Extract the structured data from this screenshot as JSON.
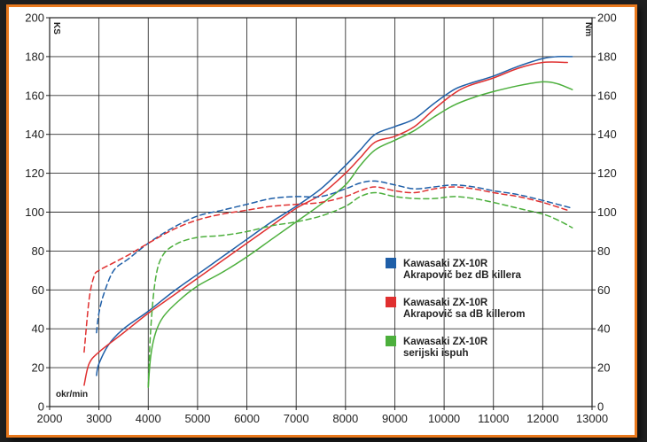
{
  "chart_data": {
    "type": "line",
    "title": "",
    "xlabel": "okr/min",
    "ylabel_left": "KS",
    "ylabel_right": "Nm",
    "xlim": [
      2000,
      13000
    ],
    "ylim": [
      0,
      200
    ],
    "x_ticks": [
      2000,
      3000,
      4000,
      5000,
      6000,
      7000,
      8000,
      9000,
      10000,
      11000,
      12000,
      13000
    ],
    "y_ticks": [
      0,
      20,
      40,
      60,
      80,
      100,
      120,
      140,
      160,
      180,
      200
    ],
    "grid": true,
    "legend_placement": "center-right",
    "legend": [
      {
        "lines": [
          "Kawasaki ZX-10R",
          "Akrapovič bez dB killera"
        ],
        "color": "#1f5fa8"
      },
      {
        "lines": [
          "Kawasaki ZX-10R",
          "Akrapovič sa dB killerom"
        ],
        "color": "#e03030"
      },
      {
        "lines": [
          "Kawasaki ZX-10R",
          "serijski ispuh"
        ],
        "color": "#4caf3c"
      }
    ],
    "series": [
      {
        "color": "#1f5fa8",
        "style": "solid",
        "x": [
          2950,
          3000,
          3200,
          3500,
          4000,
          4500,
          5000,
          5500,
          6000,
          6500,
          7000,
          7500,
          8000,
          8300,
          8600,
          9000,
          9400,
          9800,
          10200,
          10500,
          11000,
          11500,
          12000,
          12300,
          12600
        ],
        "y": [
          16,
          22,
          32,
          40,
          49,
          59,
          68,
          77,
          86,
          95,
          103,
          112,
          124,
          132,
          140,
          144,
          148,
          156,
          163,
          166,
          170,
          175,
          179,
          180,
          180
        ]
      },
      {
        "color": "#e03030",
        "style": "solid",
        "x": [
          2700,
          2800,
          3000,
          3500,
          4000,
          4500,
          5000,
          5500,
          6000,
          6500,
          7000,
          7500,
          8000,
          8300,
          8600,
          9000,
          9400,
          9800,
          10200,
          10500,
          11000,
          11500,
          12000,
          12500
        ],
        "y": [
          11,
          22,
          28,
          38,
          48,
          57,
          66,
          75,
          84,
          93,
          102,
          109,
          120,
          128,
          136,
          139,
          144,
          153,
          161,
          165,
          169,
          174,
          177,
          177
        ]
      },
      {
        "color": "#4caf3c",
        "style": "solid",
        "x": [
          4000,
          4050,
          4150,
          4300,
          4600,
          5000,
          5500,
          6000,
          6500,
          7000,
          7500,
          8000,
          8300,
          8600,
          9000,
          9400,
          9800,
          10200,
          10600,
          11000,
          11500,
          12000,
          12300,
          12600
        ],
        "y": [
          10,
          26,
          38,
          46,
          54,
          62,
          69,
          77,
          86,
          95,
          104,
          114,
          124,
          132,
          137,
          142,
          149,
          155,
          159,
          162,
          165,
          167,
          166,
          163
        ]
      },
      {
        "color": "#1f5fa8",
        "style": "dashed",
        "x": [
          2950,
          3000,
          3100,
          3300,
          3600,
          4000,
          4500,
          5000,
          5500,
          6000,
          6500,
          7000,
          7500,
          8000,
          8300,
          8600,
          9000,
          9400,
          9800,
          10200,
          10600,
          11000,
          11500,
          12000,
          12600
        ],
        "y": [
          38,
          48,
          58,
          70,
          76,
          84,
          92,
          98,
          101,
          104,
          107,
          108,
          108,
          112,
          115,
          116,
          114,
          112,
          113,
          114,
          113,
          111,
          109,
          106,
          102
        ]
      },
      {
        "color": "#e03030",
        "style": "dashed",
        "x": [
          2700,
          2800,
          2900,
          3000,
          3300,
          3600,
          4000,
          4500,
          5000,
          5500,
          6000,
          6500,
          7000,
          7500,
          8000,
          8300,
          8600,
          9000,
          9400,
          9800,
          10200,
          10600,
          11000,
          11500,
          12000,
          12500
        ],
        "y": [
          28,
          55,
          67,
          70,
          74,
          78,
          84,
          91,
          96,
          99,
          101,
          103,
          104,
          105,
          108,
          111,
          113,
          111,
          110,
          112,
          113,
          112,
          110,
          108,
          105,
          101
        ]
      },
      {
        "color": "#4caf3c",
        "style": "dashed",
        "x": [
          4000,
          4050,
          4150,
          4300,
          4600,
          5000,
          5500,
          6000,
          6500,
          7000,
          7500,
          8000,
          8300,
          8600,
          9000,
          9400,
          9800,
          10200,
          10600,
          11000,
          11500,
          12000,
          12300,
          12600
        ],
        "y": [
          10,
          40,
          66,
          78,
          84,
          87,
          88,
          90,
          93,
          95,
          98,
          103,
          108,
          110,
          108,
          107,
          107,
          108,
          107,
          105,
          102,
          99,
          96,
          92
        ]
      }
    ]
  }
}
